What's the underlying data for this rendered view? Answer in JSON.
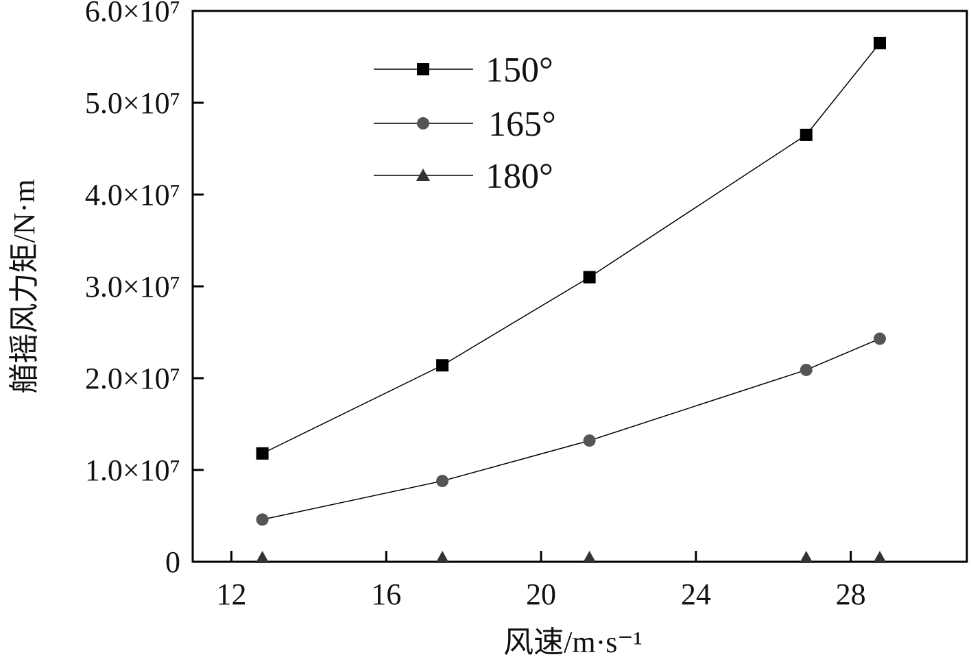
{
  "chart_data": {
    "type": "line",
    "xlabel": "风速/m·s⁻¹",
    "ylabel": "艏摇风力矩/N·m",
    "xlim": [
      11,
      31
    ],
    "ylim": [
      0,
      60000000
    ],
    "x_ticks": [
      12,
      16,
      20,
      24,
      28
    ],
    "x_tick_labels": [
      "12",
      "16",
      "20",
      "24",
      "28"
    ],
    "y_ticks": [
      0,
      10000000,
      20000000,
      30000000,
      40000000,
      50000000,
      60000000
    ],
    "y_tick_labels": [
      "0",
      "1.0×10⁷",
      "2.0×10⁷",
      "3.0×10⁷",
      "4.0×10⁷",
      "5.0×10⁷",
      "6.0×10⁷"
    ],
    "grid": false,
    "legend_position": "top-center",
    "x": [
      12.8,
      17.45,
      21.25,
      26.85,
      28.75
    ],
    "series": [
      {
        "name": "150°",
        "marker": "square",
        "color": "#000000",
        "values": [
          11800000,
          21400000,
          31000000,
          46500000,
          56500000
        ]
      },
      {
        "name": "165°",
        "marker": "circle",
        "color": "#555555",
        "values": [
          4600000,
          8800000,
          13200000,
          20900000,
          24300000
        ]
      },
      {
        "name": "180°",
        "marker": "triangle",
        "color": "#333333",
        "values": [
          0,
          0,
          0,
          0,
          0
        ]
      }
    ]
  }
}
